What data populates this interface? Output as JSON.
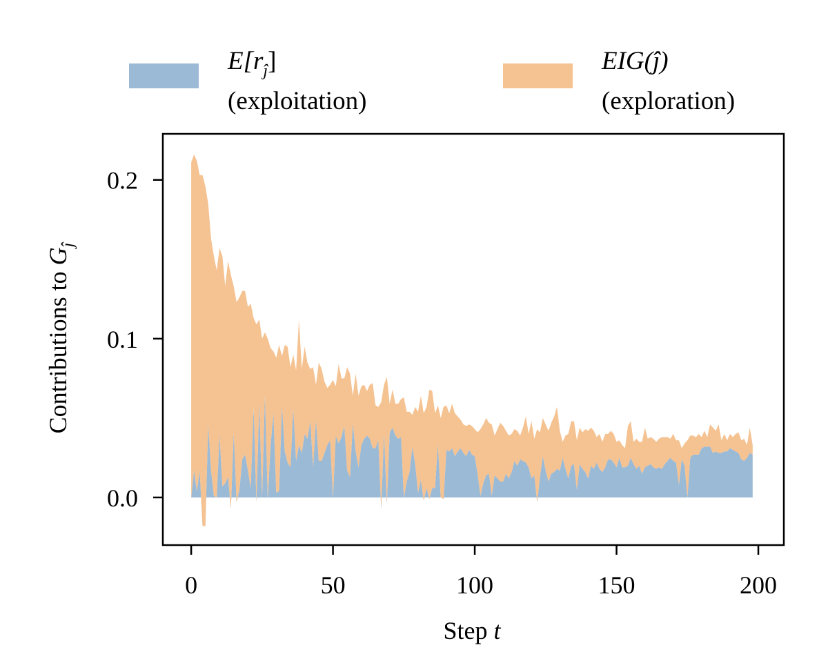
{
  "chart_data": {
    "type": "area",
    "stacked": true,
    "title": "",
    "xlabel_text": "Step ",
    "xlabel_var": "t",
    "ylabel_text": "Contributions to G",
    "ylabel_sub": "ĵ",
    "xlim": [
      -10,
      209
    ],
    "ylim": [
      -0.03,
      0.229
    ],
    "xticks": [
      0,
      50,
      100,
      150,
      200
    ],
    "xtick_labels": [
      "0",
      "50",
      "100",
      "150",
      "200"
    ],
    "yticks": [
      0.0,
      0.1,
      0.2
    ],
    "ytick_labels": [
      "0.0",
      "0.1",
      "0.2"
    ],
    "grid": false,
    "legend_placement": "top (above plot)",
    "x_start": 0,
    "x_step": 1,
    "series": [
      {
        "name": "E[r_ĵ] (exploitation)",
        "label_main": "E[r",
        "label_sub": "ĵ",
        "label_end": "]",
        "label_desc": "(exploitation)",
        "color": "#9bbad6",
        "values": [
          0,
          0.017,
          0.004,
          0.017,
          -0.018,
          -0.018,
          0.046,
          0.017,
          0.001,
          0,
          0.04,
          0.007,
          0.009,
          0.013,
          -0.007,
          0.041,
          -0.003,
          0.005,
          0.024,
          0.027,
          0.017,
          0.006,
          0.057,
          -0.003,
          0.06,
          0,
          0.065,
          -0.001,
          0.033,
          0.053,
          0.003,
          0.004,
          0.058,
          0.029,
          0.022,
          0.019,
          0.056,
          0.023,
          0.033,
          0.028,
          0.04,
          0.037,
          0.048,
          0.019,
          0.049,
          0.023,
          0.023,
          0.028,
          0.033,
          0.036,
          0,
          0.039,
          0.034,
          0.038,
          0.045,
          0.017,
          0.013,
          0.047,
          0.029,
          0.019,
          0.033,
          0.037,
          0.039,
          0.037,
          0.031,
          0.031,
          0.036,
          -0.007,
          0.041,
          -0.004,
          0.041,
          0.044,
          0.039,
          0.037,
          0.038,
          0,
          0.01,
          0.016,
          0.032,
          0.021,
          0.003,
          0.011,
          -0.002,
          0.006,
          -0.001,
          0.006,
          0.006,
          0.034,
          0,
          -0.001,
          0.03,
          0.029,
          0.031,
          0.026,
          0.029,
          0.031,
          0.028,
          0.026,
          0.03,
          0.027,
          0.026,
          0.015,
          0.001,
          0.009,
          0.014,
          0.015,
          0.001,
          0.014,
          0.012,
          0.01,
          0.01,
          0.015,
          0.012,
          0.016,
          0.023,
          0.02,
          0.024,
          0.023,
          0.022,
          0.019,
          0.012,
          0.014,
          -0.003,
          0.013,
          0.026,
          0.017,
          0.01,
          0.015,
          0.016,
          0.018,
          0.017,
          0.025,
          0.018,
          0.012,
          0.02,
          0.021,
          0.005,
          0.021,
          0.018,
          0.016,
          0.012,
          0.02,
          0.018,
          0.022,
          0.018,
          0.016,
          0.019,
          0.024,
          0.024,
          0.022,
          0.019,
          0.025,
          0.019,
          0.019,
          0.02,
          0.025,
          0.021,
          0.018,
          0.02,
          0.015,
          0.019,
          0.02,
          0.021,
          0.019,
          0.018,
          0.019,
          0.018,
          0.021,
          0.023,
          0.025,
          0.023,
          0.022,
          0.008,
          0.024,
          0.02,
          0,
          0.025,
          0.027,
          0.027,
          0.027,
          0.031,
          0.032,
          0.032,
          0.032,
          0.028,
          0.029,
          0.028,
          0.028,
          0.029,
          0.029,
          0.031,
          0.03,
          0.029,
          0.028,
          0.024,
          0.023,
          0.025,
          0.028,
          0.027
        ]
      },
      {
        "name": "EIG(ĵ) (exploration)",
        "label_main": "EIG(ĵ)",
        "label_desc": "(exploration)",
        "color": "#f5c291",
        "values": [
          0.211,
          0.199,
          0.208,
          0.186,
          0.221,
          0.214,
          0.139,
          0.146,
          0.151,
          0.143,
          0.117,
          0.145,
          0.124,
          0.136,
          0.147,
          0.092,
          0.126,
          0.121,
          0.106,
          0.103,
          0.103,
          0.116,
          0.056,
          0.112,
          0.052,
          0.1,
          0.039,
          0.101,
          0.061,
          0.039,
          0.085,
          0.092,
          0.031,
          0.067,
          0.073,
          0.063,
          0.034,
          0.057,
          0.079,
          0.053,
          0.055,
          0.048,
          0.033,
          0.063,
          0.022,
          0.062,
          0.058,
          0.045,
          0.036,
          0.035,
          0.074,
          0.031,
          0.05,
          0.037,
          0.03,
          0.065,
          0.065,
          0.017,
          0.049,
          0.045,
          0.037,
          0.034,
          0.028,
          0.034,
          0.041,
          0.027,
          0.021,
          0.067,
          0.03,
          0.08,
          0.018,
          0.024,
          0.02,
          0.022,
          0.024,
          0.063,
          0.044,
          0.038,
          0.02,
          0.036,
          0.051,
          0.053,
          0.055,
          0.051,
          0.069,
          0.061,
          0.047,
          0.024,
          0.05,
          0.058,
          0.028,
          0.024,
          0.028,
          0.027,
          0.022,
          0.018,
          0.018,
          0.019,
          0.016,
          0.018,
          0.017,
          0.026,
          0.042,
          0.037,
          0.036,
          0.032,
          0.045,
          0.025,
          0.031,
          0.037,
          0.035,
          0.027,
          0.027,
          0.024,
          0.02,
          0.022,
          0.015,
          0.021,
          0.029,
          0.021,
          0.036,
          0.023,
          0.046,
          0.028,
          0.024,
          0.029,
          0.032,
          0.032,
          0.035,
          0.039,
          0.025,
          0.01,
          0.021,
          0.028,
          0.028,
          0.027,
          0.031,
          0.023,
          0.023,
          0.027,
          0.03,
          0.024,
          0.024,
          0.016,
          0.022,
          0.019,
          0.021,
          0.016,
          0.018,
          0.018,
          0.016,
          0.011,
          0.014,
          0.012,
          0.025,
          0.023,
          0.014,
          0.019,
          0.015,
          0.02,
          0.025,
          0.017,
          0.017,
          0.018,
          0.017,
          0.018,
          0.02,
          0.017,
          0.015,
          0.012,
          0.017,
          0.014,
          0.028,
          0.007,
          0.014,
          0.036,
          0.014,
          0.012,
          0.011,
          0.013,
          0.007,
          0.01,
          0.006,
          0.014,
          0.016,
          0.013,
          0.018,
          0.008,
          0.011,
          0.007,
          0.009,
          0.008,
          0.011,
          0.013,
          0.012,
          0.014,
          0.008,
          0.016,
          0.006
        ]
      }
    ]
  }
}
